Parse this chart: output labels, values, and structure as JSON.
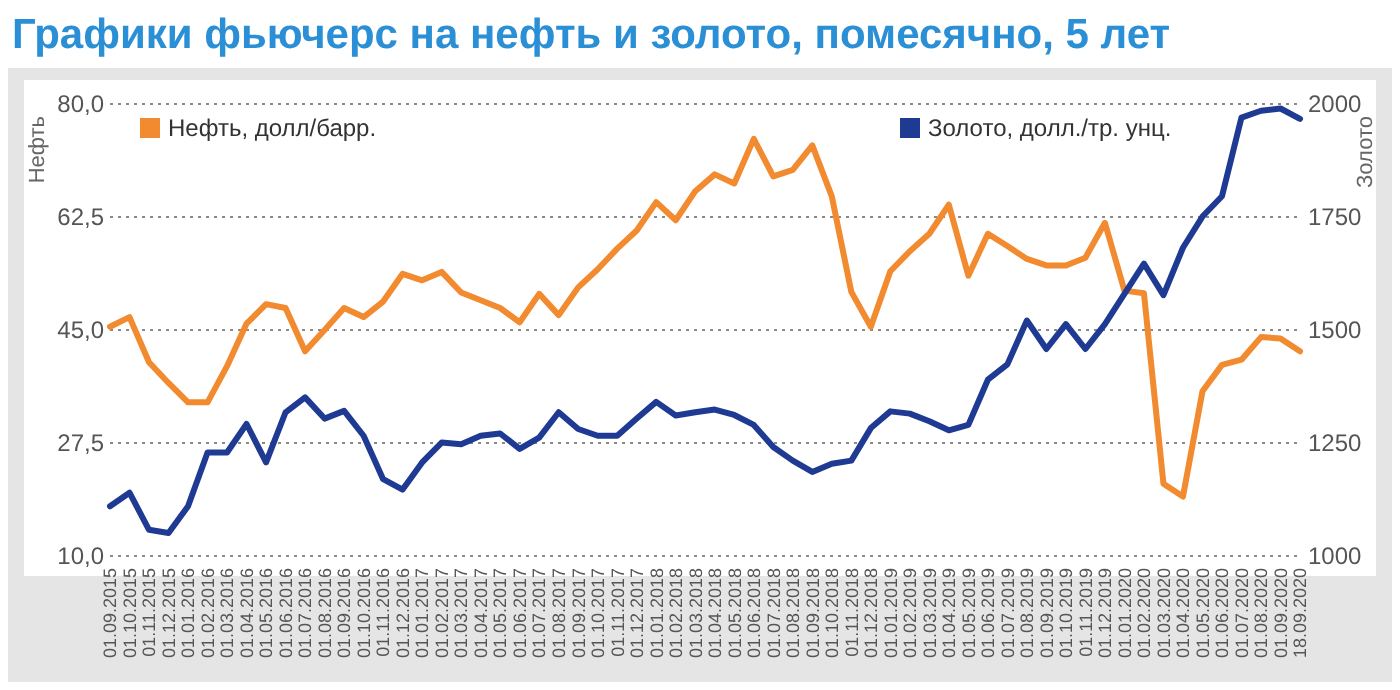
{
  "chart_data": {
    "type": "line",
    "title": "Графики фьючерс на нефть и золото, помесячно, 5 лет",
    "ylabel": "Нефть",
    "y2label": "Золото",
    "categories": [
      "01.09.2015",
      "01.10.2015",
      "01.11.2015",
      "01.12.2015",
      "01.01.2016",
      "01.02.2016",
      "01.03.2016",
      "01.04.2016",
      "01.05.2016",
      "01.06.2016",
      "01.07.2016",
      "01.08.2016",
      "01.09.2016",
      "01.10.2016",
      "01.11.2016",
      "01.12.2016",
      "01.01.2017",
      "01.02.2017",
      "01.03.2017",
      "01.04.2017",
      "01.05.2017",
      "01.06.2017",
      "01.07.2017",
      "01.08.2017",
      "01.09.2017",
      "01.10.2017",
      "01.11.2017",
      "01.12.2017",
      "01.01.2018",
      "01.02.2018",
      "01.03.2018",
      "01.04.2018",
      "01.05.2018",
      "01.06.2018",
      "01.07.2018",
      "01.08.2018",
      "01.09.2018",
      "01.10.2018",
      "01.11.2018",
      "01.12.2018",
      "01.01.2019",
      "01.02.2019",
      "01.03.2019",
      "01.04.2019",
      "01.05.2019",
      "01.06.2019",
      "01.07.2019",
      "01.08.2019",
      "01.09.2019",
      "01.10.2019",
      "01.11.2019",
      "01.12.2019",
      "01.01.2020",
      "01.02.2020",
      "01.03.2020",
      "01.04.2020",
      "01.05.2020",
      "01.06.2020",
      "01.07.2020",
      "01.08.2020",
      "01.09.2020",
      "18.09.2020"
    ],
    "series": [
      {
        "name": "Нефть, долл/барр.",
        "color": "#f28a30",
        "values": [
          45.5,
          47,
          40,
          36.8,
          33.8,
          33.8,
          39.4,
          46,
          49,
          48.4,
          41.7,
          45,
          48.4,
          47,
          49.4,
          53.7,
          52.7,
          54,
          50.8,
          49.6,
          48.4,
          46.2,
          50.6,
          47.3,
          51.6,
          54.4,
          57.6,
          60.4,
          64.8,
          62,
          66.5,
          69.1,
          67.7,
          74.6,
          68.8,
          69.8,
          73.6,
          65.7,
          50.9,
          45.5,
          54.1,
          57.2,
          59.9,
          64.4,
          53.4,
          59.9,
          58,
          56,
          55,
          55,
          56.2,
          61.6,
          51.1,
          50.7,
          21.2,
          19.2,
          35.5,
          39.6,
          40.4,
          43.9,
          43.7,
          41.7
        ]
      },
      {
        "name": "Золото, долл./тр. унц.",
        "color": "#1f3a93",
        "axis": "y2",
        "values": [
          1110,
          1140,
          1058,
          1051,
          1110,
          1229,
          1229,
          1292,
          1207,
          1318,
          1351,
          1304,
          1321,
          1266,
          1170,
          1147,
          1207,
          1251,
          1247,
          1266,
          1271,
          1237,
          1262,
          1318,
          1281,
          1266,
          1266,
          1304,
          1341,
          1311,
          1318,
          1324,
          1312,
          1290,
          1241,
          1211,
          1186,
          1204,
          1211,
          1283,
          1320,
          1315,
          1298,
          1278,
          1290,
          1390,
          1424,
          1521,
          1458,
          1513,
          1458,
          1513,
          1580,
          1647,
          1577,
          1682,
          1751,
          1796,
          1970,
          1985,
          1990,
          1967
        ]
      }
    ],
    "ylim": [
      10,
      80
    ],
    "yticks": [
      {
        "value": 10,
        "label": "10,0"
      },
      {
        "value": 27.5,
        "label": "27,5"
      },
      {
        "value": 45,
        "label": "45,0"
      },
      {
        "value": 62.5,
        "label": "62,5"
      },
      {
        "value": 80,
        "label": "80,0"
      }
    ],
    "y2lim": [
      1000,
      2000
    ],
    "y2ticks": [
      1000,
      1250,
      1500,
      1750,
      2000
    ],
    "grid": "y",
    "legend": "top",
    "marker": "none",
    "line_style": "solid"
  }
}
